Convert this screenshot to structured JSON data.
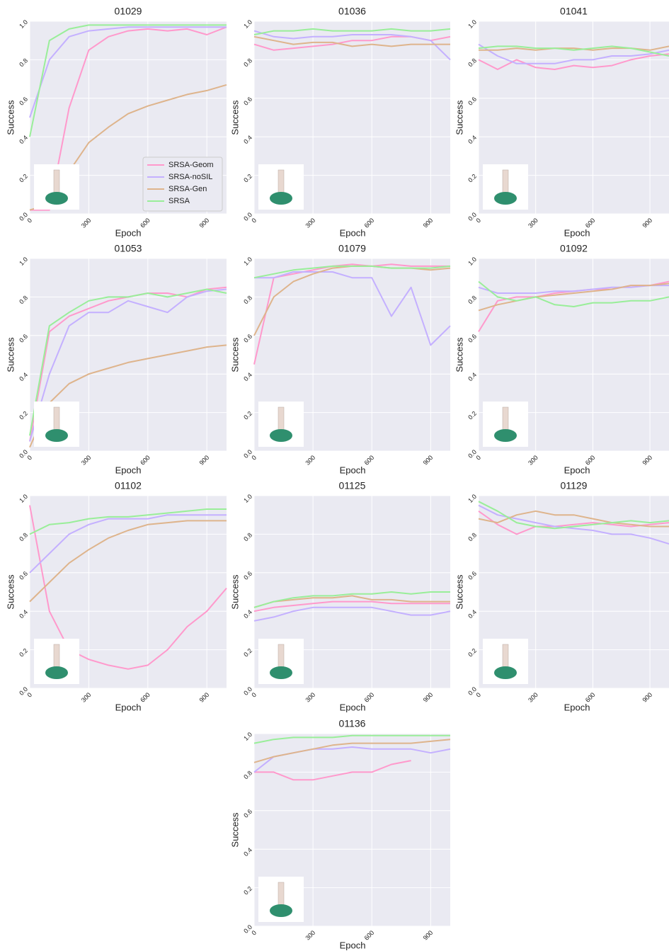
{
  "chart_data": [
    {
      "type": "line",
      "title": "01029",
      "xlabel": "Epoch",
      "ylabel": "Success",
      "legend": "lower right",
      "grid": true,
      "x": [
        0,
        100,
        200,
        300,
        400,
        500,
        600,
        700,
        800,
        900,
        1000
      ],
      "xlim": [
        0,
        1000
      ],
      "xticks": [
        0,
        300,
        600,
        900
      ],
      "ylim": [
        0,
        1
      ],
      "yticks": [
        {
          "value": 0,
          "label": "0.0"
        },
        0.2,
        0.4,
        0.6,
        0.8,
        {
          "value": 1,
          "label": "1.0"
        }
      ],
      "series": [
        {
          "name": "SRSA-Geom",
          "color": "#ff99cc",
          "values": [
            0.02,
            0.02,
            0.55,
            0.85,
            0.92,
            0.95,
            0.96,
            0.95,
            0.96,
            0.93,
            0.97
          ]
        },
        {
          "name": "SRSA-noSIL",
          "color": "#c4b0ff",
          "values": [
            0.5,
            0.8,
            0.92,
            0.95,
            0.96,
            0.97,
            0.97,
            0.97,
            0.97,
            0.97,
            0.97
          ]
        },
        {
          "name": "SRSA-Gen",
          "color": "#deb48c",
          "values": [
            0.02,
            0.05,
            0.22,
            0.37,
            0.45,
            0.52,
            0.56,
            0.59,
            0.62,
            0.64,
            0.67
          ]
        },
        {
          "name": "SRSA",
          "color": "#99ee99",
          "values": [
            0.4,
            0.9,
            0.96,
            0.98,
            0.98,
            0.98,
            0.98,
            0.98,
            0.98,
            0.98,
            0.98
          ]
        }
      ]
    },
    {
      "type": "line",
      "title": "01036",
      "xlabel": "Epoch",
      "ylabel": "Success",
      "grid": true,
      "x": [
        0,
        100,
        200,
        300,
        400,
        500,
        600,
        700,
        800,
        900,
        1000
      ],
      "xlim": [
        0,
        1000
      ],
      "xticks": [
        0,
        300,
        600,
        900
      ],
      "ylim": [
        0,
        1
      ],
      "yticks": [
        {
          "value": 0,
          "label": "0.0"
        },
        0.2,
        0.4,
        0.6,
        0.8,
        {
          "value": 1,
          "label": "1.0"
        }
      ],
      "series": [
        {
          "name": "SRSA-Geom",
          "color": "#ff99cc",
          "values": [
            0.88,
            0.85,
            0.86,
            0.87,
            0.88,
            0.9,
            0.9,
            0.92,
            0.92,
            0.9,
            0.92
          ]
        },
        {
          "name": "SRSA-noSIL",
          "color": "#c4b0ff",
          "values": [
            0.95,
            0.92,
            0.91,
            0.92,
            0.92,
            0.93,
            0.93,
            0.93,
            0.92,
            0.9,
            0.8
          ]
        },
        {
          "name": "SRSA-Gen",
          "color": "#deb48c",
          "values": [
            0.92,
            0.9,
            0.88,
            0.89,
            0.89,
            0.87,
            0.88,
            0.87,
            0.88,
            0.88,
            0.88
          ]
        },
        {
          "name": "SRSA",
          "color": "#99ee99",
          "values": [
            0.93,
            0.95,
            0.95,
            0.96,
            0.95,
            0.95,
            0.95,
            0.96,
            0.95,
            0.95,
            0.96
          ]
        }
      ]
    },
    {
      "type": "line",
      "title": "01041",
      "xlabel": "Epoch",
      "ylabel": "Success",
      "grid": true,
      "x": [
        0,
        100,
        200,
        300,
        400,
        500,
        600,
        700,
        800,
        900,
        1000
      ],
      "xlim": [
        0,
        1000
      ],
      "xticks": [
        0,
        300,
        600,
        900
      ],
      "ylim": [
        0,
        1
      ],
      "yticks": [
        {
          "value": 0,
          "label": "0.0"
        },
        0.2,
        0.4,
        0.6,
        0.8,
        {
          "value": 1,
          "label": "1.0"
        }
      ],
      "series": [
        {
          "name": "SRSA-Geom",
          "color": "#ff99cc",
          "values": [
            0.8,
            0.75,
            0.8,
            0.76,
            0.75,
            0.77,
            0.76,
            0.77,
            0.8,
            0.82,
            0.83
          ]
        },
        {
          "name": "SRSA-noSIL",
          "color": "#c4b0ff",
          "values": [
            0.88,
            0.82,
            0.78,
            0.78,
            0.78,
            0.8,
            0.8,
            0.82,
            0.82,
            0.83,
            0.85
          ]
        },
        {
          "name": "SRSA-Gen",
          "color": "#deb48c",
          "values": [
            0.85,
            0.85,
            0.86,
            0.85,
            0.86,
            0.86,
            0.85,
            0.86,
            0.86,
            0.85,
            0.87
          ]
        },
        {
          "name": "SRSA",
          "color": "#99ee99",
          "values": [
            0.86,
            0.87,
            0.87,
            0.86,
            0.86,
            0.85,
            0.86,
            0.87,
            0.86,
            0.84,
            0.82
          ]
        }
      ]
    },
    {
      "type": "line",
      "title": "01053",
      "xlabel": "Epoch",
      "ylabel": "Success",
      "grid": true,
      "x": [
        0,
        100,
        200,
        300,
        400,
        500,
        600,
        700,
        800,
        900,
        1000
      ],
      "xlim": [
        0,
        1000
      ],
      "xticks": [
        0,
        300,
        600,
        900
      ],
      "ylim": [
        0,
        1
      ],
      "yticks": [
        {
          "value": 0,
          "label": "0.0"
        },
        0.2,
        0.4,
        0.6,
        0.8,
        {
          "value": 1,
          "label": "1.0"
        }
      ],
      "series": [
        {
          "name": "SRSA-Geom",
          "color": "#ff99cc",
          "values": [
            0.05,
            0.62,
            0.7,
            0.74,
            0.78,
            0.8,
            0.82,
            0.82,
            0.8,
            0.84,
            0.85
          ]
        },
        {
          "name": "SRSA-noSIL",
          "color": "#c4b0ff",
          "values": [
            0.05,
            0.4,
            0.65,
            0.72,
            0.72,
            0.78,
            0.75,
            0.72,
            0.8,
            0.83,
            0.84
          ]
        },
        {
          "name": "SRSA-Gen",
          "color": "#deb48c",
          "values": [
            0.02,
            0.25,
            0.35,
            0.4,
            0.43,
            0.46,
            0.48,
            0.5,
            0.52,
            0.54,
            0.55
          ]
        },
        {
          "name": "SRSA",
          "color": "#99ee99",
          "values": [
            0.08,
            0.65,
            0.72,
            0.78,
            0.8,
            0.8,
            0.82,
            0.8,
            0.82,
            0.84,
            0.82
          ]
        }
      ]
    },
    {
      "type": "line",
      "title": "01079",
      "xlabel": "Epoch",
      "ylabel": "Success",
      "grid": true,
      "x": [
        0,
        100,
        200,
        300,
        400,
        500,
        600,
        700,
        800,
        900,
        1000
      ],
      "xlim": [
        0,
        1000
      ],
      "xticks": [
        0,
        300,
        600,
        900
      ],
      "ylim": [
        0,
        1
      ],
      "yticks": [
        {
          "value": 0,
          "label": "0.0"
        },
        0.2,
        0.4,
        0.6,
        0.8,
        {
          "value": 1,
          "label": "1.0"
        }
      ],
      "series": [
        {
          "name": "SRSA-Geom",
          "color": "#ff99cc",
          "values": [
            0.45,
            0.9,
            0.92,
            0.94,
            0.96,
            0.97,
            0.96,
            0.97,
            0.96,
            0.96,
            0.96
          ]
        },
        {
          "name": "SRSA-noSIL",
          "color": "#c4b0ff",
          "values": [
            0.9,
            0.9,
            0.93,
            0.93,
            0.93,
            0.9,
            0.9,
            0.7,
            0.85,
            0.55,
            0.65
          ]
        },
        {
          "name": "SRSA-Gen",
          "color": "#deb48c",
          "values": [
            0.6,
            0.8,
            0.88,
            0.92,
            0.95,
            0.96,
            0.96,
            0.95,
            0.95,
            0.94,
            0.95
          ]
        },
        {
          "name": "SRSA",
          "color": "#99ee99",
          "values": [
            0.9,
            0.92,
            0.94,
            0.95,
            0.96,
            0.96,
            0.96,
            0.95,
            0.95,
            0.95,
            0.96
          ]
        }
      ]
    },
    {
      "type": "line",
      "title": "01092",
      "xlabel": "Epoch",
      "ylabel": "Success",
      "grid": true,
      "x": [
        0,
        100,
        200,
        300,
        400,
        500,
        600,
        700,
        800,
        900,
        1000
      ],
      "xlim": [
        0,
        1000
      ],
      "xticks": [
        0,
        300,
        600,
        900
      ],
      "ylim": [
        0,
        1
      ],
      "yticks": [
        {
          "value": 0,
          "label": "0.0"
        },
        0.2,
        0.4,
        0.6,
        0.8,
        {
          "value": 1,
          "label": "1.0"
        }
      ],
      "series": [
        {
          "name": "SRSA-Geom",
          "color": "#ff99cc",
          "values": [
            0.62,
            0.78,
            0.8,
            0.8,
            0.82,
            0.83,
            0.84,
            0.84,
            0.86,
            0.86,
            0.88
          ]
        },
        {
          "name": "SRSA-noSIL",
          "color": "#c4b0ff",
          "values": [
            0.85,
            0.82,
            0.82,
            0.82,
            0.83,
            0.83,
            0.84,
            0.85,
            0.85,
            0.86,
            0.86
          ]
        },
        {
          "name": "SRSA-Gen",
          "color": "#deb48c",
          "values": [
            0.73,
            0.76,
            0.78,
            0.8,
            0.81,
            0.82,
            0.83,
            0.84,
            0.86,
            0.86,
            0.87
          ]
        },
        {
          "name": "SRSA",
          "color": "#99ee99",
          "values": [
            0.88,
            0.8,
            0.78,
            0.8,
            0.76,
            0.75,
            0.77,
            0.77,
            0.78,
            0.78,
            0.8
          ]
        }
      ]
    },
    {
      "type": "line",
      "title": "01102",
      "xlabel": "Epoch",
      "ylabel": "Success",
      "grid": true,
      "x": [
        0,
        100,
        200,
        300,
        400,
        500,
        600,
        700,
        800,
        900,
        1000
      ],
      "xlim": [
        0,
        1000
      ],
      "xticks": [
        0,
        300,
        600,
        900
      ],
      "ylim": [
        0,
        1
      ],
      "yticks": [
        {
          "value": 0,
          "label": "0.0"
        },
        0.2,
        0.4,
        0.6,
        0.8,
        {
          "value": 1,
          "label": "1.0"
        }
      ],
      "series": [
        {
          "name": "SRSA-Geom",
          "color": "#ff99cc",
          "values": [
            0.95,
            0.4,
            0.2,
            0.15,
            0.12,
            0.1,
            0.12,
            0.2,
            0.32,
            0.4,
            0.52
          ]
        },
        {
          "name": "SRSA-noSIL",
          "color": "#c4b0ff",
          "values": [
            0.6,
            0.7,
            0.8,
            0.85,
            0.88,
            0.88,
            0.88,
            0.9,
            0.9,
            0.9,
            0.9
          ]
        },
        {
          "name": "SRSA-Gen",
          "color": "#deb48c",
          "values": [
            0.45,
            0.55,
            0.65,
            0.72,
            0.78,
            0.82,
            0.85,
            0.86,
            0.87,
            0.87,
            0.87
          ]
        },
        {
          "name": "SRSA",
          "color": "#99ee99",
          "values": [
            0.8,
            0.85,
            0.86,
            0.88,
            0.89,
            0.89,
            0.9,
            0.91,
            0.92,
            0.93,
            0.93
          ]
        }
      ]
    },
    {
      "type": "line",
      "title": "01125",
      "xlabel": "Epoch",
      "ylabel": "Success",
      "grid": true,
      "x": [
        0,
        100,
        200,
        300,
        400,
        500,
        600,
        700,
        800,
        900,
        1000
      ],
      "xlim": [
        0,
        1000
      ],
      "xticks": [
        0,
        300,
        600,
        900
      ],
      "ylim": [
        0,
        1
      ],
      "yticks": [
        {
          "value": 0,
          "label": "0.0"
        },
        0.2,
        0.4,
        0.6,
        0.8,
        {
          "value": 1,
          "label": "1.0"
        }
      ],
      "series": [
        {
          "name": "SRSA-Geom",
          "color": "#ff99cc",
          "values": [
            0.4,
            0.42,
            0.43,
            0.44,
            0.45,
            0.45,
            0.45,
            0.44,
            0.44,
            0.44,
            0.44
          ]
        },
        {
          "name": "SRSA-noSIL",
          "color": "#c4b0ff",
          "values": [
            0.35,
            0.37,
            0.4,
            0.42,
            0.42,
            0.42,
            0.42,
            0.4,
            0.38,
            0.38,
            0.4
          ]
        },
        {
          "name": "SRSA-Gen",
          "color": "#deb48c",
          "values": [
            0.42,
            0.45,
            0.46,
            0.47,
            0.47,
            0.48,
            0.46,
            0.46,
            0.45,
            0.45,
            0.45
          ]
        },
        {
          "name": "SRSA",
          "color": "#99ee99",
          "values": [
            0.42,
            0.45,
            0.47,
            0.48,
            0.48,
            0.49,
            0.49,
            0.5,
            0.49,
            0.5,
            0.5
          ]
        }
      ]
    },
    {
      "type": "line",
      "title": "01129",
      "xlabel": "Epoch",
      "ylabel": "Success",
      "grid": true,
      "x": [
        0,
        100,
        200,
        300,
        400,
        500,
        600,
        700,
        800,
        900,
        1000
      ],
      "xlim": [
        0,
        1000
      ],
      "xticks": [
        0,
        300,
        600,
        900
      ],
      "ylim": [
        0,
        1
      ],
      "yticks": [
        {
          "value": 0,
          "label": "0.0"
        },
        0.2,
        0.4,
        0.6,
        0.8,
        {
          "value": 1,
          "label": "1.0"
        }
      ],
      "series": [
        {
          "name": "SRSA-Geom",
          "color": "#ff99cc",
          "values": [
            0.92,
            0.85,
            0.8,
            0.84,
            0.84,
            0.85,
            0.86,
            0.85,
            0.84,
            0.85,
            0.86
          ]
        },
        {
          "name": "SRSA-noSIL",
          "color": "#c4b0ff",
          "values": [
            0.95,
            0.9,
            0.88,
            0.86,
            0.84,
            0.83,
            0.82,
            0.8,
            0.8,
            0.78,
            0.75
          ]
        },
        {
          "name": "SRSA-Gen",
          "color": "#deb48c",
          "values": [
            0.88,
            0.86,
            0.9,
            0.92,
            0.9,
            0.9,
            0.88,
            0.86,
            0.85,
            0.84,
            0.84
          ]
        },
        {
          "name": "SRSA",
          "color": "#99ee99",
          "values": [
            0.97,
            0.92,
            0.86,
            0.84,
            0.83,
            0.84,
            0.85,
            0.86,
            0.87,
            0.86,
            0.87
          ]
        }
      ]
    },
    {
      "type": "line",
      "title": "01136",
      "xlabel": "Epoch",
      "ylabel": "Success",
      "grid": true,
      "x": [
        0,
        100,
        200,
        300,
        400,
        500,
        600,
        700,
        800,
        900,
        1000
      ],
      "xlim": [
        0,
        1000
      ],
      "xticks": [
        0,
        300,
        600,
        900
      ],
      "ylim": [
        0,
        1
      ],
      "yticks": [
        {
          "value": 0,
          "label": "0.0"
        },
        0.2,
        0.4,
        0.6,
        0.8,
        {
          "value": 1,
          "label": "1.0"
        }
      ],
      "series": [
        {
          "name": "SRSA-Geom",
          "color": "#ff99cc",
          "values": [
            0.8,
            0.8,
            0.76,
            0.76,
            0.78,
            0.8,
            0.8,
            0.84,
            0.86,
            null,
            null
          ]
        },
        {
          "name": "SRSA-noSIL",
          "color": "#c4b0ff",
          "values": [
            0.8,
            0.88,
            0.9,
            0.92,
            0.92,
            0.93,
            0.92,
            0.92,
            0.92,
            0.9,
            0.92
          ]
        },
        {
          "name": "SRSA-Gen",
          "color": "#deb48c",
          "values": [
            0.85,
            0.88,
            0.9,
            0.92,
            0.94,
            0.95,
            0.95,
            0.95,
            0.95,
            0.96,
            0.97
          ]
        },
        {
          "name": "SRSA",
          "color": "#99ee99",
          "values": [
            0.95,
            0.97,
            0.98,
            0.98,
            0.98,
            0.99,
            0.99,
            0.99,
            0.99,
            0.99,
            0.99
          ]
        }
      ]
    }
  ]
}
